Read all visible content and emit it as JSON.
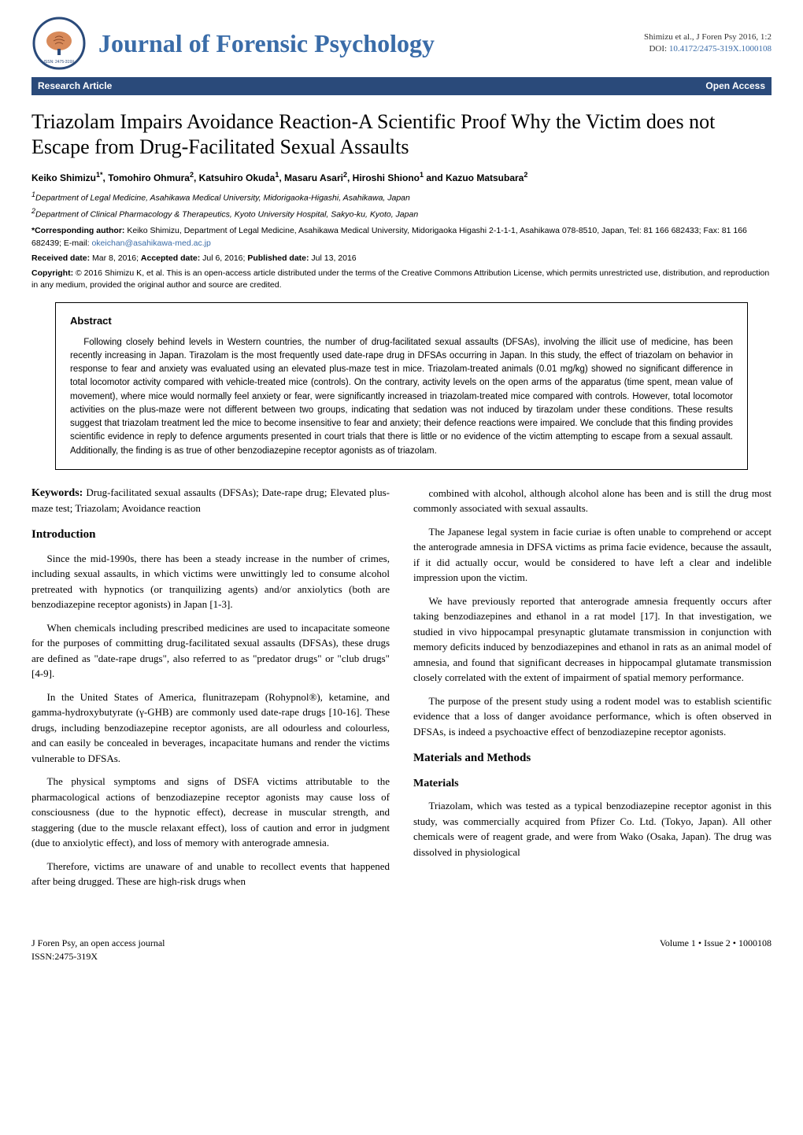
{
  "header": {
    "logo": {
      "outer_text": "Journal of Forensic Psychology",
      "issn": "ISSN: 2475-319X",
      "ring_color": "#2a4a7a",
      "brain_color": "#d88a5a"
    },
    "journal_title": "Journal of Forensic Psychology",
    "journal_title_color": "#3a6ca8",
    "citation_line": "Shimizu et al., J Foren Psy 2016, 1:2",
    "doi_prefix": "DOI: ",
    "doi": "10.4172/2475-319X.1000108"
  },
  "banner": {
    "left": "Research Article",
    "right": "Open Access",
    "bg_color": "#2a4a7a",
    "text_color": "#ffffff"
  },
  "article": {
    "title": "Triazolam Impairs Avoidance Reaction-A Scientific Proof Why the Victim does not Escape from Drug-Facilitated Sexual Assaults",
    "authors_html": "Keiko Shimizu<sup>1*</sup>, Tomohiro Ohmura<sup>2</sup>, Katsuhiro Okuda<sup>1</sup>, Masaru Asari<sup>2</sup>, Hiroshi Shiono<sup>1</sup> and Kazuo Matsubara<sup>2</sup>",
    "affiliations": [
      "<sup>1</sup>Department of Legal Medicine, Asahikawa Medical University, Midorigaoka-Higashi, Asahikawa, Japan",
      "<sup>2</sup>Department of Clinical Pharmacology & Therapeutics, Kyoto University Hospital, Sakyo-ku, Kyoto, Japan"
    ],
    "corresponding_label": "*Corresponding author:",
    "corresponding_text": " Keiko Shimizu, Department of Legal Medicine, Asahikawa Medical University, Midorigaoka Higashi 2-1-1-1, Asahikawa 078-8510, Japan, Tel: 81 166 682433; Fax: 81 166 682439; E-mail: ",
    "email": "okeichan@asahikawa-med.ac.jp",
    "dates_html": "<span class='bold'>Received date:</span> Mar 8, 2016; <span class='bold'>Accepted date:</span> Jul 6, 2016; <span class='bold'>Published date:</span> Jul 13, 2016",
    "copyright_label": "Copyright:",
    "copyright_text": " © 2016 Shimizu K, et al. This is an open-access article distributed under the terms of the Creative Commons Attribution License, which permits unrestricted use, distribution, and reproduction in any medium, provided the original author and source are credited."
  },
  "abstract": {
    "heading": "Abstract",
    "text": "Following closely behind levels in Western countries, the number of drug-facilitated sexual assaults (DFSAs), involving the illicit use of medicine, has been recently increasing in Japan. Tirazolam is the most frequently used date-rape drug in DFSAs occurring in Japan. In this study, the effect of triazolam on behavior in response to fear and anxiety was evaluated using an elevated plus-maze test in mice. Triazolam-treated animals (0.01 mg/kg) showed no significant difference in total locomotor activity compared with vehicle-treated mice (controls). On the contrary, activity levels on the open arms of the apparatus (time spent, mean value of movement), where mice would normally feel anxiety or fear, were significantly increased in triazolam-treated mice compared with controls. However, total locomotor activities on the plus-maze were not different between two groups, indicating that sedation was not induced by tirazolam under these conditions. These results suggest that triazolam treatment led the mice to become insensitive to fear and anxiety; their defence reactions were impaired. We conclude that this finding provides scientific evidence in reply to defence arguments presented in court trials that there is little or no evidence of the victim attempting to escape from a sexual assault. Additionally, the finding is as true of other benzodiazepine receptor agonists as of triazolam."
  },
  "keywords": {
    "label": "Keywords:",
    "text": " Drug-facilitated sexual assaults (DFSAs); Date-rape drug; Elevated plus-maze test; Triazolam; Avoidance reaction"
  },
  "sections": {
    "intro_heading": "Introduction",
    "intro_paras": [
      "Since the mid-1990s, there has been a steady increase in the number of crimes, including sexual assaults, in which victims were unwittingly led to consume alcohol pretreated with hypnotics (or tranquilizing agents) and/or anxiolytics (both are benzodiazepine receptor agonists) in Japan [1-3].",
      "When chemicals including prescribed medicines are used to incapacitate someone for the purposes of committing drug-facilitated sexual assaults (DFSAs), these drugs are defined as \"date-rape drugs\", also referred to as \"predator drugs\" or \"club drugs\" [4-9].",
      "In the United States of America, flunitrazepam (Rohypnol®), ketamine, and gamma-hydroxybutyrate (γ-GHB) are commonly used date-rape drugs [10-16]. These drugs, including benzodiazepine receptor agonists, are all odourless and colourless, and can easily be concealed in beverages, incapacitate humans and render the victims vulnerable to DFSAs.",
      "The physical symptoms and signs of DSFA victims attributable to the pharmacological actions of benzodiazepine receptor agonists may cause loss of consciousness (due to the hypnotic effect), decrease in muscular strength, and staggering (due to the muscle relaxant effect), loss of caution and error in judgment (due to anxiolytic effect), and loss of memory with anterograde amnesia.",
      "Therefore, victims are unaware of and unable to recollect events that happened after being drugged. These are high-risk drugs when"
    ],
    "right_paras": [
      "combined with alcohol, although alcohol alone has been and is still the drug most commonly associated with sexual assaults.",
      "The Japanese legal system in facie curiae is often unable to comprehend or accept the anterograde amnesia in DFSA victims as prima facie evidence, because the assault, if it did actually occur, would be considered to have left a clear and indelible impression upon the victim.",
      "We have previously reported that anterograde amnesia frequently occurs after taking benzodiazepines and ethanol in a rat model [17]. In that investigation, we studied in vivo hippocampal presynaptic glutamate transmission in conjunction with memory deficits induced by benzodiazepines and ethanol in rats as an animal model of amnesia, and found that significant decreases in hippocampal glutamate transmission closely correlated with the extent of impairment of spatial memory performance.",
      "The purpose of the present study using a rodent model was to establish scientific evidence that a loss of danger avoidance performance, which is often observed in DFSAs, is indeed a psychoactive effect of benzodiazepine receptor agonists."
    ],
    "methods_heading": "Materials and Methods",
    "materials_subheading": "Materials",
    "materials_paras": [
      "Triazolam, which was tested as a typical benzodiazepine receptor agonist in this study, was commercially acquired from Pfizer Co. Ltd. (Tokyo, Japan). All other chemicals were of reagent grade, and were from Wako (Osaka, Japan). The drug was dissolved in physiological"
    ]
  },
  "footer": {
    "left_line1": "J Foren Psy, an open access journal",
    "left_line2": "ISSN:2475-319X",
    "right": "Volume 1 • Issue 2 • 1000108"
  },
  "colors": {
    "link": "#3a6ca8",
    "banner_bg": "#2a4a7a",
    "text": "#000000",
    "bg": "#ffffff"
  },
  "typography": {
    "body_font": "Georgia, Times New Roman, serif",
    "sans_font": "Arial, sans-serif",
    "journal_title_size": 32,
    "article_title_size": 26,
    "section_heading_size": 15,
    "body_size": 13,
    "abstract_size": 11.5,
    "meta_size": 10.5
  }
}
